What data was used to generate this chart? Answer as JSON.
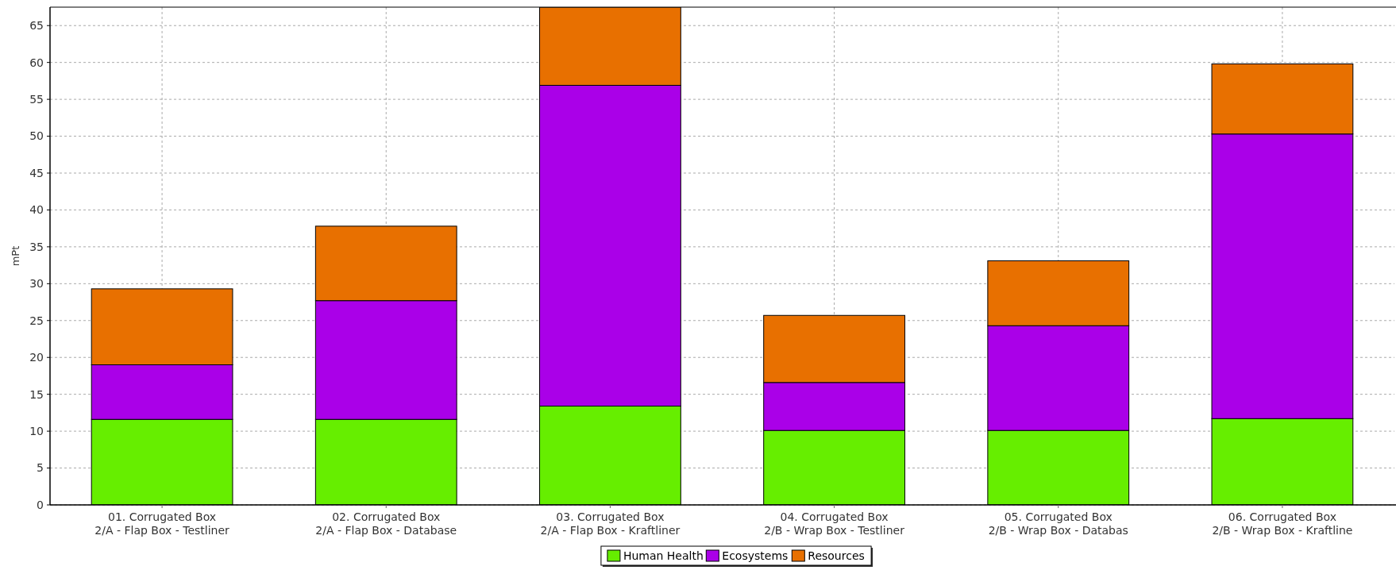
{
  "chart_data": {
    "type": "bar",
    "stacked": true,
    "ylabel": "mPt",
    "categories": [
      "01. Corrugated Box\n2/A - Flap Box - Testliner",
      "02. Corrugated Box\n2/A - Flap Box - Database",
      "03. Corrugated Box\n2/A - Flap Box - Kraftliner",
      "04. Corrugated Box\n2/B - Wrap Box - Testliner",
      "05. Corrugated Box\n2/B - Wrap Box - Databas",
      "06. Corrugated Box\n2/B - Wrap Box - Kraftline"
    ],
    "series": [
      {
        "name": "Human Health",
        "color": "#66ee00",
        "values": [
          11.6,
          11.6,
          13.4,
          10.1,
          10.1,
          11.7
        ]
      },
      {
        "name": "Ecosystems",
        "color": "#aa00e8",
        "values": [
          7.4,
          16.1,
          43.5,
          6.5,
          14.2,
          38.6
        ]
      },
      {
        "name": "Resources",
        "color": "#e87000",
        "values": [
          10.3,
          10.1,
          10.6,
          9.1,
          8.8,
          9.5
        ]
      }
    ],
    "ylim": [
      0,
      67.5
    ],
    "yticks": [
      0,
      5,
      10,
      15,
      20,
      25,
      30,
      35,
      40,
      45,
      50,
      55,
      60,
      65
    ],
    "grid": true,
    "legend": "bottom"
  }
}
